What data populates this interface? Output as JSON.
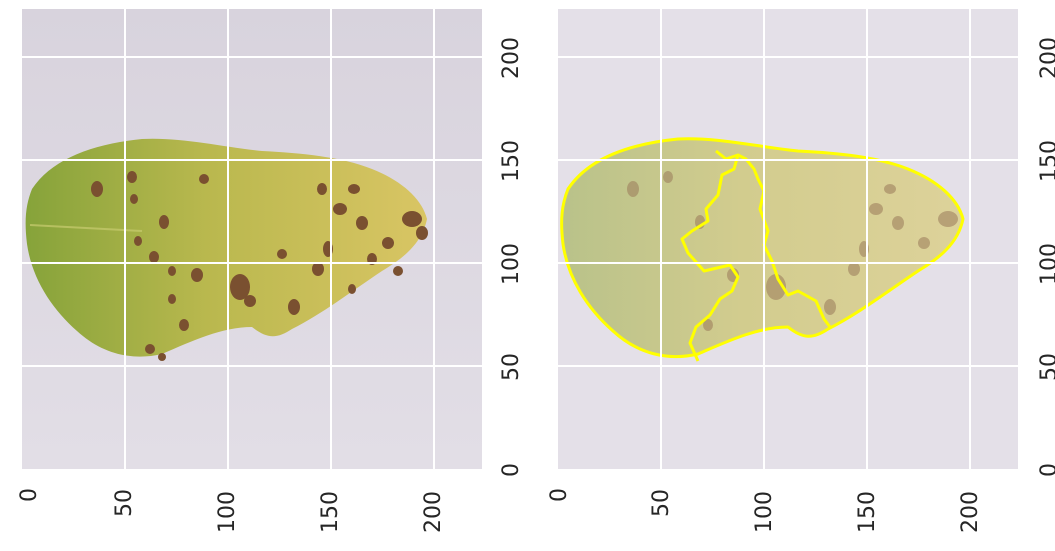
{
  "panels": [
    {
      "id": "original",
      "xticks": [
        "0",
        "50",
        "100",
        "150",
        "200"
      ],
      "yticks": [
        "0",
        "50",
        "100",
        "150",
        "200"
      ]
    },
    {
      "id": "segmented",
      "xticks": [
        "0",
        "50",
        "100",
        "150",
        "200"
      ],
      "yticks": [
        "0",
        "50",
        "100",
        "150",
        "200"
      ]
    }
  ],
  "colors": {
    "background": "#ddd9e2",
    "leaf_green": "#8fa83c",
    "leaf_yellow": "#d6c864",
    "spot": "#7a5030",
    "grid": "#ffffff",
    "contour": "#ffff00"
  }
}
